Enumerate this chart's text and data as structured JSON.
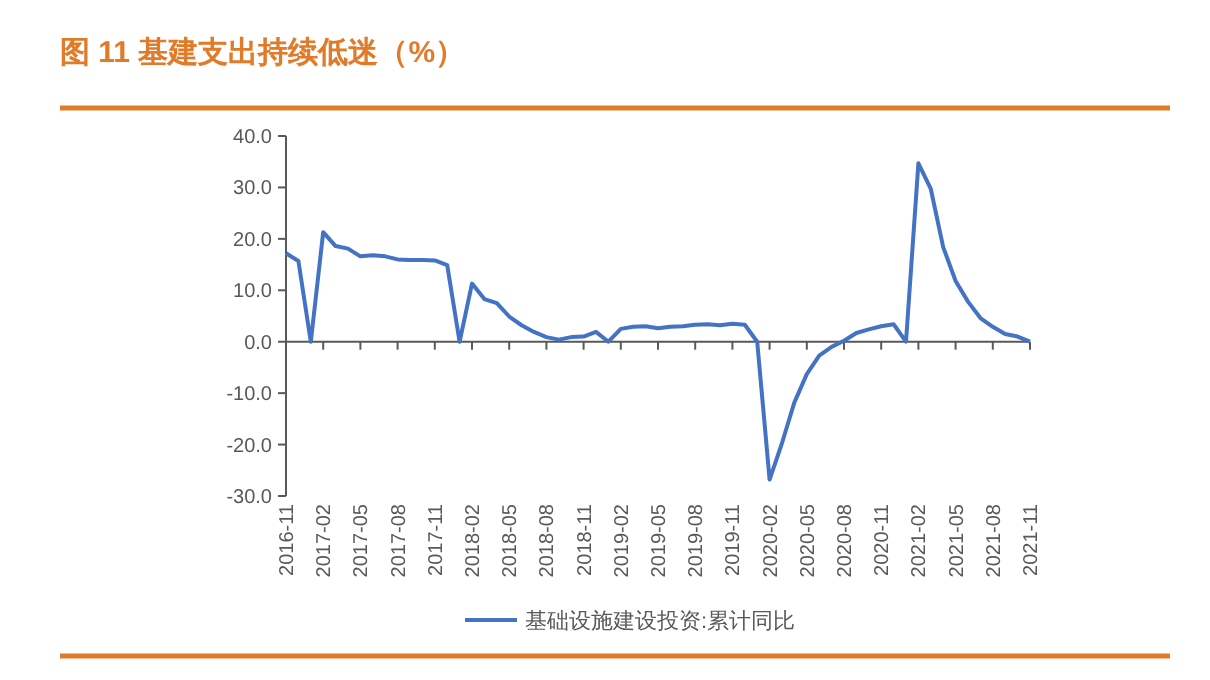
{
  "chart_data": {
    "type": "line",
    "title": "图 11  基建支出持续低迷（%）",
    "categories": [
      "2016-11",
      null,
      null,
      "2017-02",
      null,
      null,
      "2017-05",
      null,
      null,
      "2017-08",
      null,
      null,
      "2017-11",
      null,
      null,
      "2018-02",
      null,
      null,
      "2018-05",
      null,
      null,
      "2018-08",
      null,
      null,
      "2018-11",
      null,
      null,
      "2019-02",
      null,
      null,
      "2019-05",
      null,
      null,
      "2019-08",
      null,
      null,
      "2019-11",
      null,
      null,
      "2020-02",
      null,
      null,
      "2020-05",
      null,
      null,
      "2020-08",
      null,
      null,
      "2020-11",
      null,
      null,
      "2021-02",
      null,
      null,
      "2021-05",
      null,
      null,
      "2021-08",
      null,
      null,
      "2021-11"
    ],
    "series": [
      {
        "name": "基础设施建设投资:累计同比",
        "color": "#4472c4",
        "values": [
          17.2,
          15.7,
          0,
          21.3,
          18.6,
          18.1,
          16.6,
          16.8,
          16.6,
          16.0,
          15.9,
          15.9,
          15.8,
          14.9,
          0,
          11.3,
          8.3,
          7.5,
          4.9,
          3.2,
          1.9,
          0.9,
          0.4,
          0.9,
          1.0,
          1.9,
          0,
          2.5,
          2.9,
          3.0,
          2.6,
          2.9,
          3.0,
          3.3,
          3.4,
          3.2,
          3.5,
          3.3,
          0,
          -26.8,
          -19.7,
          -11.8,
          -6.3,
          -2.7,
          -1.0,
          0.2,
          1.7,
          2.4,
          3.0,
          3.4,
          0,
          34.7,
          29.7,
          18.4,
          11.8,
          7.8,
          4.6,
          2.9,
          1.5,
          1.0,
          0.0
        ]
      }
    ],
    "ylim": [
      -30,
      40
    ],
    "yticks": [
      {
        "value": -30,
        "label": "-30.0"
      },
      {
        "value": -20,
        "label": "-20.0"
      },
      {
        "value": -10,
        "label": "-10.0"
      },
      {
        "value": 0,
        "label": "0.0"
      },
      {
        "value": 10,
        "label": "10.0"
      },
      {
        "value": 20,
        "label": "20.0"
      },
      {
        "value": 30,
        "label": "30.0"
      },
      {
        "value": 40,
        "label": "40.0"
      }
    ],
    "legend": "bottom"
  }
}
